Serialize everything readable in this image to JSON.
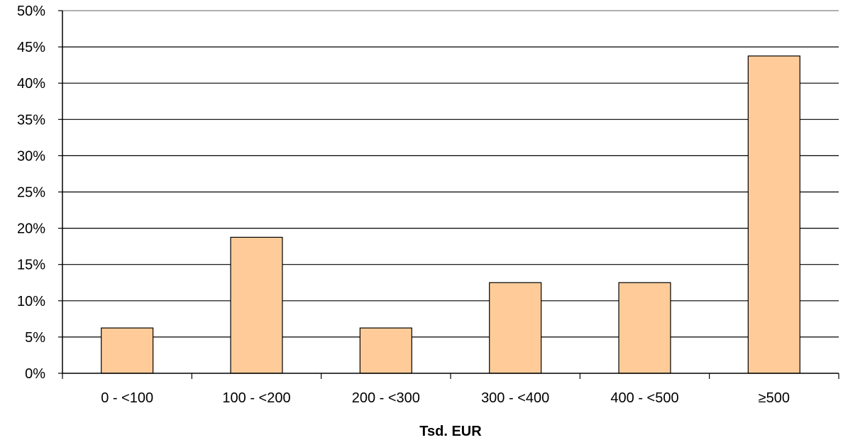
{
  "chart_data": {
    "type": "bar",
    "categories": [
      "0 - <100",
      "100 - <200",
      "200 - <300",
      "300 - <400",
      "400 - <500",
      "≥500"
    ],
    "values": [
      6.25,
      18.75,
      6.25,
      12.5,
      12.5,
      43.75
    ],
    "value_unit": "%",
    "xlabel": "Tsd. EUR",
    "ylabel": "",
    "ylim": [
      0,
      50
    ],
    "yticks": [
      "0%",
      "5%",
      "10%",
      "15%",
      "20%",
      "25%",
      "30%",
      "35%",
      "40%",
      "45%",
      "50%"
    ],
    "grid": true,
    "legend": "none",
    "bar_color": "#ffcc99",
    "bar_border_color": "#000000"
  }
}
